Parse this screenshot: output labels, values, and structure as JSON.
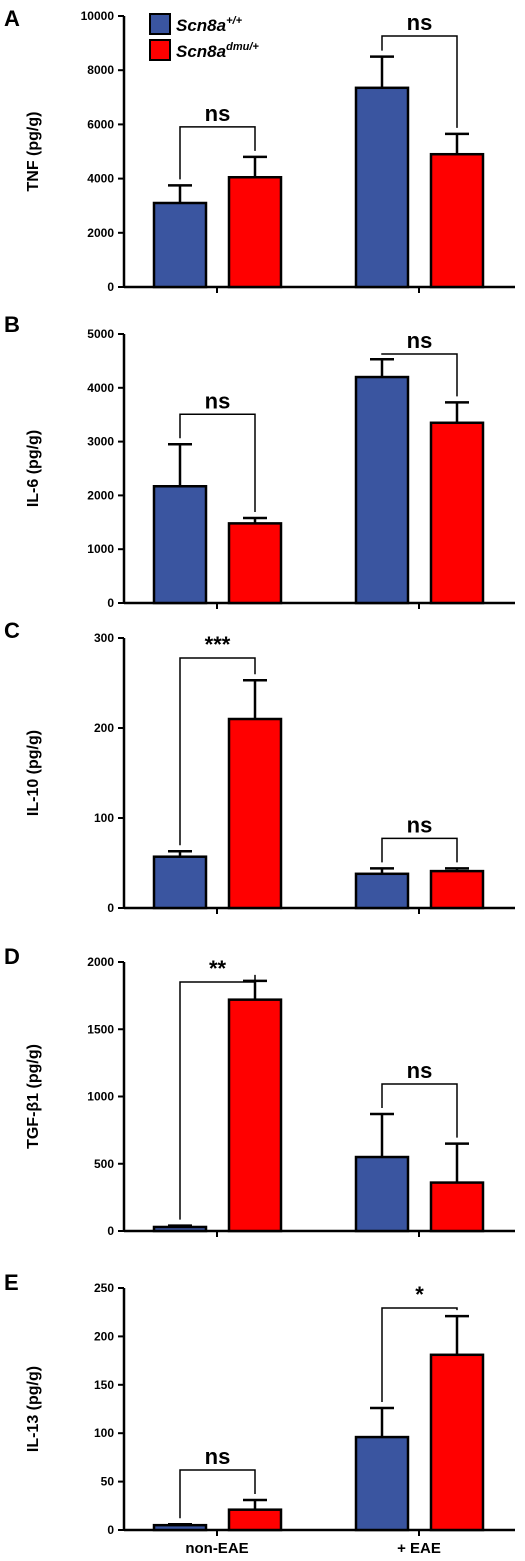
{
  "legend": {
    "entries": [
      {
        "name": "Scn8a",
        "sup": "+/+",
        "color": "#3A55A0"
      },
      {
        "name": "Scn8a",
        "sup": "dmu/+",
        "color": "#FF0000"
      }
    ]
  },
  "categories": [
    "non-EAE",
    "+ EAE"
  ],
  "chart_data": [
    {
      "type": "bar",
      "panel": "A",
      "ylabel": "TNF (pg/g)",
      "categories": [
        "non-EAE",
        "+ EAE"
      ],
      "ylim": [
        0,
        10000
      ],
      "yticks": [
        0,
        2000,
        4000,
        6000,
        8000,
        10000
      ],
      "series": [
        {
          "name": "Scn8a+/+",
          "color": "#3A55A0",
          "values": [
            3100,
            7350
          ],
          "errors": [
            650,
            1150
          ]
        },
        {
          "name": "Scn8admu/+",
          "color": "#FF0000",
          "values": [
            4050,
            4900
          ],
          "errors": [
            750,
            750
          ]
        }
      ],
      "annotations": [
        {
          "category": 0,
          "text": "ns"
        },
        {
          "category": 1,
          "text": "ns"
        }
      ]
    },
    {
      "type": "bar",
      "panel": "B",
      "ylabel": "IL-6 (pg/g)",
      "categories": [
        "non-EAE",
        "+ EAE"
      ],
      "ylim": [
        0,
        5000
      ],
      "yticks": [
        0,
        1000,
        2000,
        3000,
        4000,
        5000
      ],
      "series": [
        {
          "name": "Scn8a+/+",
          "color": "#3A55A0",
          "values": [
            2170,
            4200
          ],
          "errors": [
            780,
            330
          ]
        },
        {
          "name": "Scn8admu/+",
          "color": "#FF0000",
          "values": [
            1480,
            3350
          ],
          "errors": [
            100,
            380
          ]
        }
      ],
      "annotations": [
        {
          "category": 0,
          "text": "ns"
        },
        {
          "category": 1,
          "text": "ns"
        }
      ]
    },
    {
      "type": "bar",
      "panel": "C",
      "ylabel": "IL-10 (pg/g)",
      "categories": [
        "non-EAE",
        "+ EAE"
      ],
      "ylim": [
        0,
        300
      ],
      "yticks": [
        0,
        100,
        200,
        300
      ],
      "series": [
        {
          "name": "Scn8a+/+",
          "color": "#3A55A0",
          "values": [
            57,
            38
          ],
          "errors": [
            6,
            6
          ]
        },
        {
          "name": "Scn8admu/+",
          "color": "#FF0000",
          "values": [
            210,
            41
          ],
          "errors": [
            43,
            3
          ]
        }
      ],
      "annotations": [
        {
          "category": 0,
          "text": "***"
        },
        {
          "category": 1,
          "text": "ns"
        }
      ]
    },
    {
      "type": "bar",
      "panel": "D",
      "ylabel": "TGF-β1 (pg/g)",
      "categories": [
        "non-EAE",
        "+ EAE"
      ],
      "ylim": [
        0,
        2000
      ],
      "yticks": [
        0,
        500,
        1000,
        1500,
        2000
      ],
      "series": [
        {
          "name": "Scn8a+/+",
          "color": "#3A55A0",
          "values": [
            30,
            550
          ],
          "errors": [
            10,
            320
          ]
        },
        {
          "name": "Scn8admu/+",
          "color": "#FF0000",
          "values": [
            1720,
            360
          ],
          "errors": [
            140,
            290
          ]
        }
      ],
      "annotations": [
        {
          "category": 0,
          "text": "**"
        },
        {
          "category": 1,
          "text": "ns"
        }
      ]
    },
    {
      "type": "bar",
      "panel": "E",
      "ylabel": "IL-13 (pg/g)",
      "categories": [
        "non-EAE",
        "+ EAE"
      ],
      "ylim": [
        0,
        250
      ],
      "yticks": [
        0,
        50,
        100,
        150,
        200,
        250
      ],
      "series": [
        {
          "name": "Scn8a+/+",
          "color": "#3A55A0",
          "values": [
            5,
            96
          ],
          "errors": [
            1,
            30
          ]
        },
        {
          "name": "Scn8admu/+",
          "color": "#FF0000",
          "values": [
            21,
            181
          ],
          "errors": [
            10,
            40
          ]
        }
      ],
      "annotations": [
        {
          "category": 0,
          "text": "ns"
        },
        {
          "category": 1,
          "text": "*"
        }
      ]
    }
  ]
}
